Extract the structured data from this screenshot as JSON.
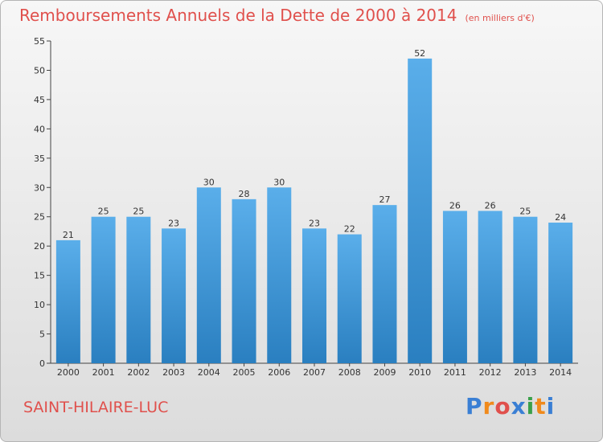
{
  "header": {
    "title": "Remboursements Annuels de la Dette de 2000 à 2014",
    "unit": "(en milliers d'€)"
  },
  "footer": {
    "commune": "SAINT-HILAIRE-LUC",
    "logo_letters": [
      "P",
      "r",
      "o",
      "x",
      "i",
      "t",
      "i"
    ],
    "logo_colors": [
      "#3a7fd4",
      "#f08a1c",
      "#e0504c",
      "#3a7fd4",
      "#3aa04a",
      "#f08a1c",
      "#3a7fd4"
    ]
  },
  "colors": {
    "bar_top": "#5aaeea",
    "bar_bottom": "#2a7fc0",
    "title": "#e0504c"
  },
  "chart_data": {
    "type": "bar",
    "categories": [
      "2000",
      "2001",
      "2002",
      "2003",
      "2004",
      "2005",
      "2006",
      "2007",
      "2008",
      "2009",
      "2010",
      "2011",
      "2012",
      "2013",
      "2014"
    ],
    "values": [
      21,
      25,
      25,
      23,
      30,
      28,
      30,
      23,
      22,
      27,
      52,
      26,
      26,
      25,
      24
    ],
    "ylim": [
      0,
      55
    ],
    "yticks": [
      0,
      5,
      10,
      15,
      20,
      25,
      30,
      35,
      40,
      45,
      50,
      55
    ],
    "grid": false,
    "legend": "none"
  }
}
